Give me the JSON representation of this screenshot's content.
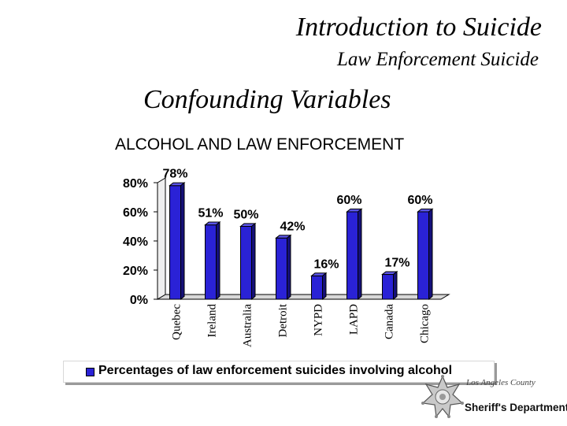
{
  "header": {
    "title": "Introduction to Suicide",
    "subtitle": "Law Enforcement Suicide",
    "heading": "Confounding Variables"
  },
  "chart_data": {
    "type": "bar",
    "title": "ALCOHOL AND LAW ENFORCEMENT",
    "categories": [
      "Quebec",
      "Ireland",
      "Australia",
      "Detroit",
      "NYPD",
      "LAPD",
      "Canada",
      "Chicago"
    ],
    "series": [
      {
        "name": "Percentages of law enforcement suicides involving alcohol",
        "values": [
          78,
          51,
          50,
          42,
          16,
          60,
          17,
          60
        ],
        "labels": [
          "78%",
          "51%",
          "50%",
          "42%",
          "16%",
          "60%",
          "17%",
          "60%"
        ]
      }
    ],
    "yticks": [
      "0%",
      "20%",
      "40%",
      "60%",
      "80%"
    ],
    "ylim": [
      0,
      80
    ],
    "bar_color": "#2a22d6",
    "legend_position": "bottom",
    "grid": false
  },
  "logo": {
    "county": "Los Angeles County",
    "department": "Sheriff's Department"
  }
}
